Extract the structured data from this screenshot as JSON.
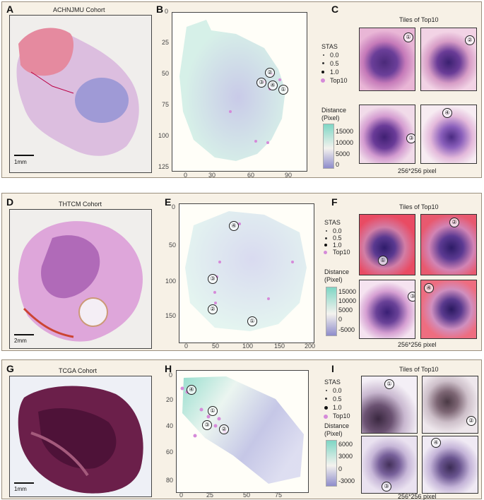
{
  "rows": [
    {
      "panel_a": "A",
      "panel_b": "B",
      "panel_c": "C",
      "cohort": "ACHNJMU Cohort",
      "scale": "1mm",
      "x_ticks": [
        "0",
        "30",
        "60",
        "90"
      ],
      "y_ticks": [
        "0",
        "25",
        "50",
        "75",
        "100",
        "125"
      ],
      "legend": {
        "stas_title": "STAS",
        "s0": "0.0",
        "s1": "0.5",
        "s2": "1.0",
        "top10": "Top10",
        "dist_title": "Distance",
        "dist_unit": "(Pixel)",
        "cb": [
          "15000",
          "10000",
          "5000",
          "0"
        ]
      },
      "tiles_title": "Tiles of Top10",
      "tiles_foot": "256*256 pixel",
      "markers": [
        "①",
        "②",
        "③",
        "④"
      ],
      "tile_nums": [
        "①",
        "②",
        "③",
        "④"
      ]
    },
    {
      "panel_a": "D",
      "panel_b": "E",
      "panel_c": "F",
      "cohort": "THTCM Cohort",
      "scale": "2mm",
      "x_ticks": [
        "0",
        "50",
        "100",
        "150",
        "200"
      ],
      "y_ticks": [
        "0",
        "50",
        "100",
        "150"
      ],
      "legend": {
        "stas_title": "STAS",
        "s0": "0.0",
        "s1": "0.5",
        "s2": "1.0",
        "top10": "Top10",
        "dist_title": "Distance",
        "dist_unit": "(Pixel)",
        "cb": [
          "15000",
          "10000",
          "5000",
          "0",
          "-5000"
        ]
      },
      "tiles_title": "Tiles of Top10",
      "tiles_foot": "256*256 pixel",
      "markers": [
        "①",
        "②",
        "③",
        "④"
      ],
      "tile_nums": [
        "①",
        "②",
        "③",
        "④"
      ]
    },
    {
      "panel_a": "G",
      "panel_b": "H",
      "panel_c": "I",
      "cohort": "TCGA Cohort",
      "scale": "1mm",
      "x_ticks": [
        "0",
        "25",
        "50",
        "75"
      ],
      "y_ticks": [
        "0",
        "20",
        "40",
        "60",
        "80"
      ],
      "legend": {
        "stas_title": "STAS",
        "s0": "0.0",
        "s1": "0.5",
        "s2": "1.0",
        "top10": "Top10",
        "dist_title": "Distance",
        "dist_unit": "(Pixel)",
        "cb": [
          "6000",
          "3000",
          "0",
          "-3000"
        ]
      },
      "tiles_title": "Tiles of Top10",
      "tiles_foot": "256*256 pixel",
      "markers": [
        "①",
        "②",
        "③",
        "④"
      ],
      "tile_nums": [
        "①",
        "②",
        "③",
        "④"
      ]
    }
  ],
  "colors": {
    "teal": "#7fd6c4",
    "purple": "#9a9ad0",
    "top10": "#d58ad9",
    "frame": "#f7f1e6"
  }
}
